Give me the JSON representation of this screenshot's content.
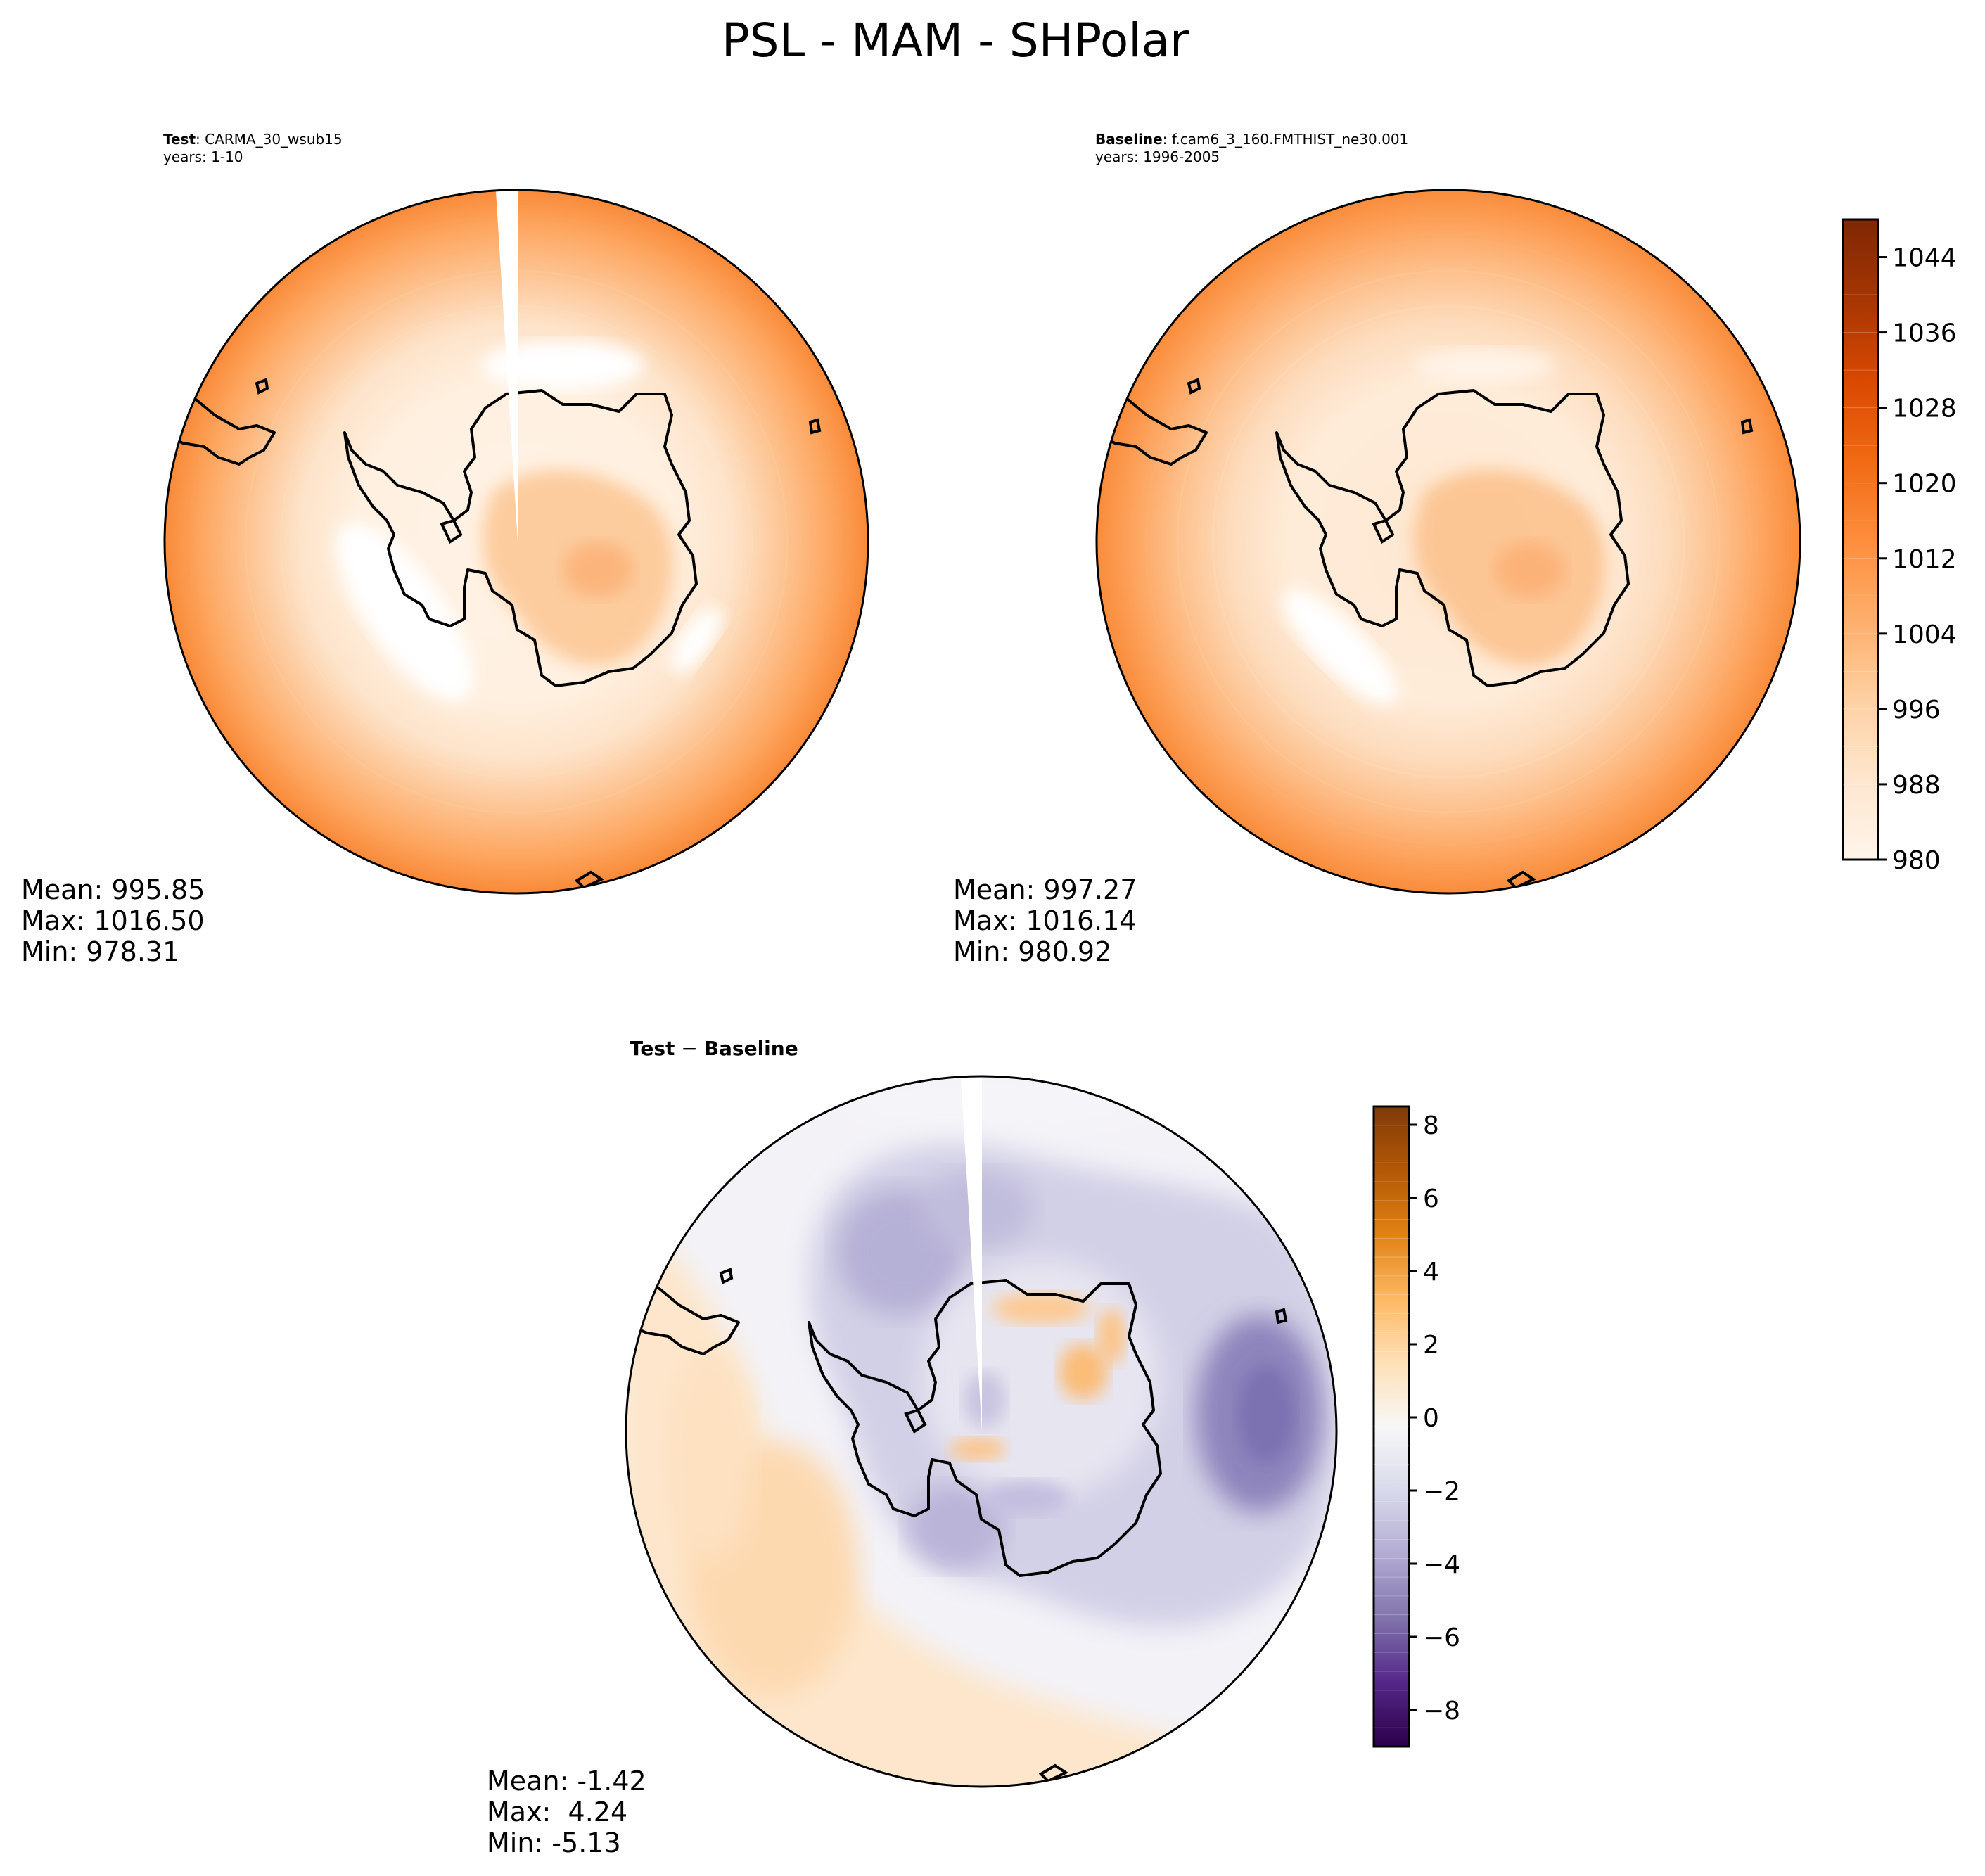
{
  "figure": {
    "title": "PSL - MAM - SHPolar"
  },
  "chart_data": [
    {
      "type": "heatmap",
      "projection": "south-polar-stereographic",
      "panel": "test",
      "title_bold": "Test",
      "title_rest": ": CARMA_30_wsub15",
      "years_label": "years: 1-10",
      "variable": "PSL",
      "season": "MAM",
      "stats": {
        "mean": "Mean: 995.85",
        "max": "Max: 1016.50",
        "min": "Min: 978.31"
      },
      "colormap": "Oranges",
      "shared_colorbar": "absolute"
    },
    {
      "type": "heatmap",
      "projection": "south-polar-stereographic",
      "panel": "baseline",
      "title_bold": "Baseline",
      "title_rest": ": f.cam6_3_160.FMTHIST_ne30.001",
      "years_label": "years: 1996-2005",
      "variable": "PSL",
      "season": "MAM",
      "stats": {
        "mean": "Mean: 997.27",
        "max": "Max: 1016.14",
        "min": "Min: 980.92"
      },
      "colormap": "Oranges",
      "colorbar": {
        "range": [
          980,
          1048
        ],
        "ticks": [
          980,
          988,
          996,
          1004,
          1012,
          1020,
          1028,
          1036,
          1044
        ],
        "tick_labels": [
          "980",
          "988",
          "996",
          "1004",
          "1012",
          "1020",
          "1028",
          "1036",
          "1044"
        ],
        "levels": 17
      }
    },
    {
      "type": "heatmap",
      "projection": "south-polar-stereographic",
      "panel": "difference",
      "title_bold": "Test",
      "title_op": " − ",
      "title_bold2": "Baseline",
      "variable": "PSL",
      "season": "MAM",
      "stats": {
        "mean": "Mean: -1.42",
        "max": "Max:  4.24",
        "min": "Min: -5.13"
      },
      "colormap": "PuOr_r",
      "colorbar": {
        "range": [
          -9,
          8.5
        ],
        "ticks": [
          -8,
          -6,
          -4,
          -2,
          0,
          2,
          4,
          6,
          8
        ],
        "tick_labels": [
          "−8",
          "−6",
          "−4",
          "−2",
          "0",
          "2",
          "4",
          "6",
          "8"
        ],
        "levels": 34
      }
    }
  ],
  "colors": {
    "orange_scale": [
      "#fff5eb",
      "#fee6ce",
      "#fdd0a2",
      "#fdae6b",
      "#fd8d3c",
      "#f16913",
      "#d94801",
      "#a63603",
      "#7f2704"
    ],
    "diverging_scale": [
      "#2d004b",
      "#542788",
      "#8073ac",
      "#b2abd2",
      "#d8daeb",
      "#f7f7f7",
      "#fee0b6",
      "#fdb863",
      "#e08214",
      "#b35806",
      "#7f3b08"
    ],
    "coastline": "#000000"
  }
}
